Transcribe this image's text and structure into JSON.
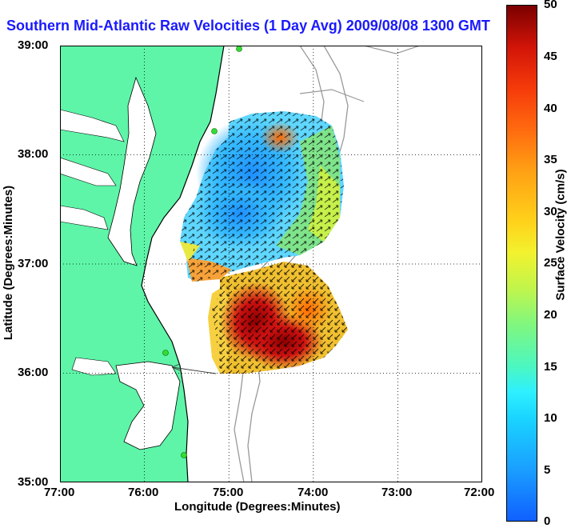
{
  "title": "Southern Mid-Atlantic Raw Velocities (1 Day Avg) 2009/08/08 1300 GMT",
  "axes": {
    "xlabel": "Longitude (Degrees:Minutes)",
    "ylabel": "Latitude (Degrees:Minutes)",
    "x_ticks": [
      "77:00",
      "76:00",
      "75:00",
      "74:00",
      "73:00",
      "72:00"
    ],
    "y_ticks": [
      "39:00",
      "38:00",
      "37:00",
      "36:00",
      "35:00"
    ],
    "xlim": [
      -77,
      -72
    ],
    "ylim": [
      35,
      39
    ],
    "grid": "dotted"
  },
  "colorbar": {
    "label": "Surface Velocity (cm/s)",
    "ticks": [
      "50",
      "45",
      "40",
      "35",
      "30",
      "25",
      "20",
      "15",
      "10",
      "5",
      "0"
    ],
    "range": [
      0,
      50
    ]
  },
  "colors": {
    "land": "#5ef5a8",
    "title": "#1a1aff",
    "station": "#33dd33"
  }
}
